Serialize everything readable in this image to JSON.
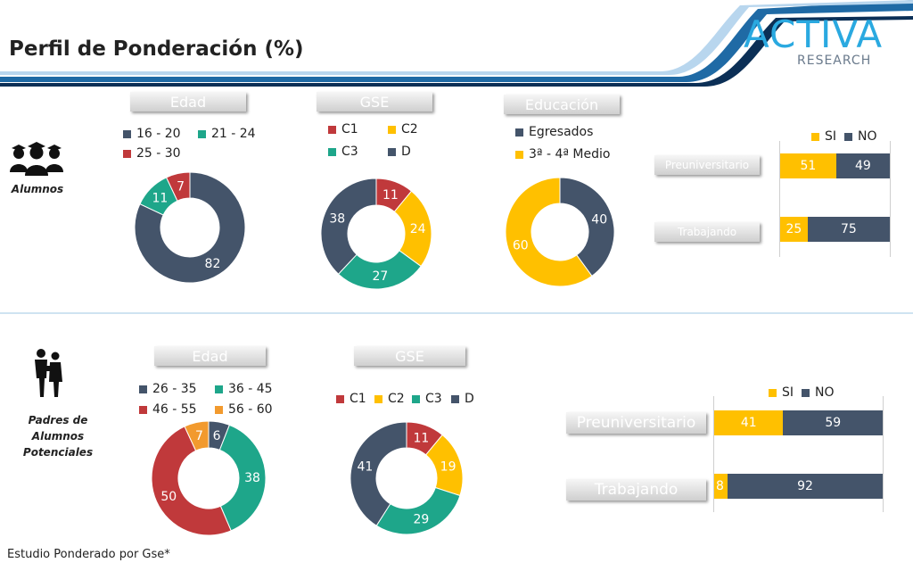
{
  "header": {
    "title": "Perfil de Ponderación (%)",
    "logo_main": "ACTIVA",
    "logo_sub": "RESEARCH"
  },
  "colors": {
    "slate": "#44546a",
    "teal": "#1ea68a",
    "red": "#c0393b",
    "yellow": "#ffc000",
    "orange": "#f29a2e",
    "accent_blue": "#1f6aa5"
  },
  "icons": [
    "students-icon",
    "parents-icon"
  ],
  "alumnos": {
    "label": "Alumnos",
    "edad_title": "Edad",
    "gse_title": "GSE",
    "educacion_title": "Educación",
    "preuniversitario_label": "Preuniversitario",
    "trabajando_label": "Trabajando"
  },
  "padres": {
    "label": "Padres de Alumnos Potenciales",
    "edad_title": "Edad",
    "gse_title": "GSE",
    "preuniversitario_label": "Preuniversitario",
    "trabajando_label": "Trabajando"
  },
  "footnote": "Estudio Ponderado por Gse*",
  "chart_data": [
    {
      "id": "alumnos-edad",
      "type": "pie",
      "title": "Edad",
      "categories": [
        "16 - 20",
        "21 - 24",
        "25 - 30"
      ],
      "values": [
        82,
        11,
        7
      ],
      "colors": [
        "#44546a",
        "#1ea68a",
        "#c0393b"
      ]
    },
    {
      "id": "alumnos-gse",
      "type": "pie",
      "title": "GSE",
      "categories": [
        "C1",
        "C2",
        "C3",
        "D"
      ],
      "values": [
        11,
        24,
        27,
        38
      ],
      "colors": [
        "#c0393b",
        "#ffc000",
        "#1ea68a",
        "#44546a"
      ]
    },
    {
      "id": "alumnos-educacion",
      "type": "pie",
      "title": "Educación",
      "categories": [
        "Egresados",
        "3ª - 4ª Medio"
      ],
      "values": [
        40,
        60
      ],
      "colors": [
        "#44546a",
        "#ffc000"
      ]
    },
    {
      "id": "alumnos-actividad",
      "type": "bar",
      "stacked": true,
      "orientation": "horizontal",
      "categories": [
        "Preuniversitario",
        "Trabajando"
      ],
      "series": [
        {
          "name": "SI",
          "values": [
            51,
            25
          ],
          "color": "#ffc000"
        },
        {
          "name": "NO",
          "values": [
            49,
            75
          ],
          "color": "#44546a"
        }
      ]
    },
    {
      "id": "padres-edad",
      "type": "pie",
      "title": "Edad",
      "categories": [
        "26 - 35",
        "36 - 45",
        "46 - 55",
        "56 - 60"
      ],
      "values": [
        6,
        38,
        50,
        7
      ],
      "colors": [
        "#44546a",
        "#1ea68a",
        "#c0393b",
        "#f29a2e"
      ]
    },
    {
      "id": "padres-gse",
      "type": "pie",
      "title": "GSE",
      "categories": [
        "C1",
        "C2",
        "C3",
        "D"
      ],
      "values": [
        11,
        19,
        29,
        41
      ],
      "colors": [
        "#c0393b",
        "#ffc000",
        "#1ea68a",
        "#44546a"
      ]
    },
    {
      "id": "padres-actividad",
      "type": "bar",
      "stacked": true,
      "orientation": "horizontal",
      "categories": [
        "Preuniversitario",
        "Trabajando"
      ],
      "series": [
        {
          "name": "SI",
          "values": [
            41,
            8
          ],
          "color": "#ffc000"
        },
        {
          "name": "NO",
          "values": [
            59,
            92
          ],
          "color": "#44546a"
        }
      ]
    }
  ]
}
